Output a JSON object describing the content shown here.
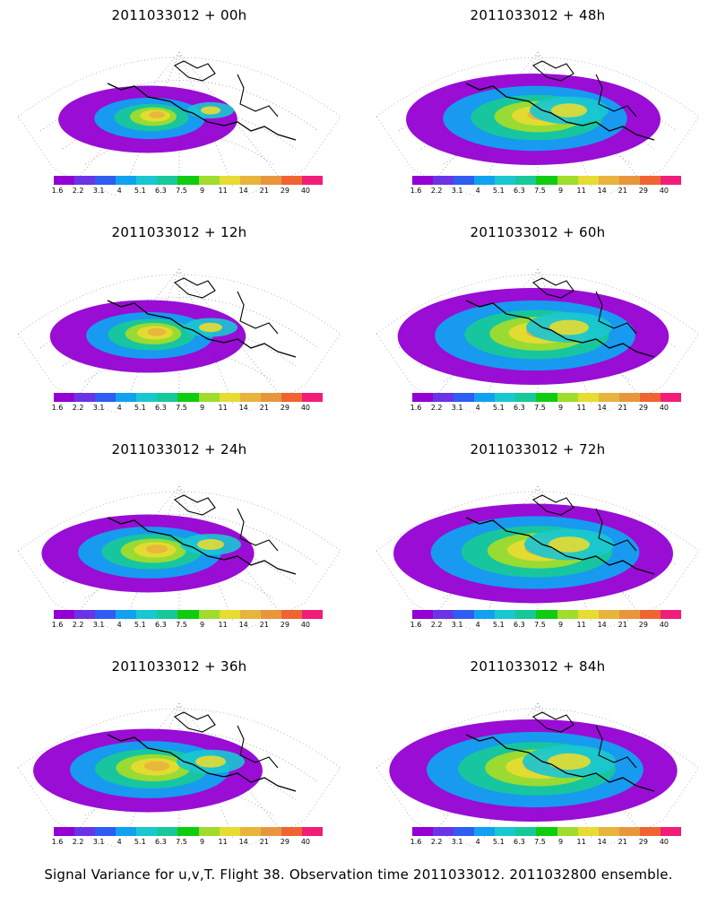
{
  "panels": [
    {
      "title": "2011033012 + 00h",
      "intensity": 0.25
    },
    {
      "title": "2011033012 + 48h",
      "intensity": 0.7
    },
    {
      "title": "2011033012 + 12h",
      "intensity": 0.35
    },
    {
      "title": "2011033012 + 60h",
      "intensity": 0.8
    },
    {
      "title": "2011033012 + 24h",
      "intensity": 0.45
    },
    {
      "title": "2011033012 + 72h",
      "intensity": 0.85
    },
    {
      "title": "2011033012 + 36h",
      "intensity": 0.55
    },
    {
      "title": "2011033012 + 84h",
      "intensity": 0.9
    }
  ],
  "colorbar": {
    "labels": [
      "1.6",
      "2.2",
      "3.1",
      "4",
      "5.1",
      "6.3",
      "7.5",
      "9",
      "11",
      "14",
      "21",
      "29",
      "40"
    ],
    "colors": [
      "#9400d3",
      "#6a34e6",
      "#2f5cf2",
      "#10a2f0",
      "#19c7d1",
      "#17c89a",
      "#10cc10",
      "#a0dc2c",
      "#e6dc32",
      "#e8b43c",
      "#e8963c",
      "#f06432",
      "#f01e78"
    ]
  },
  "caption": "Signal Variance for u,v,T. Flight 38. Observation time 2011033012. 2011032800 ensemble."
}
